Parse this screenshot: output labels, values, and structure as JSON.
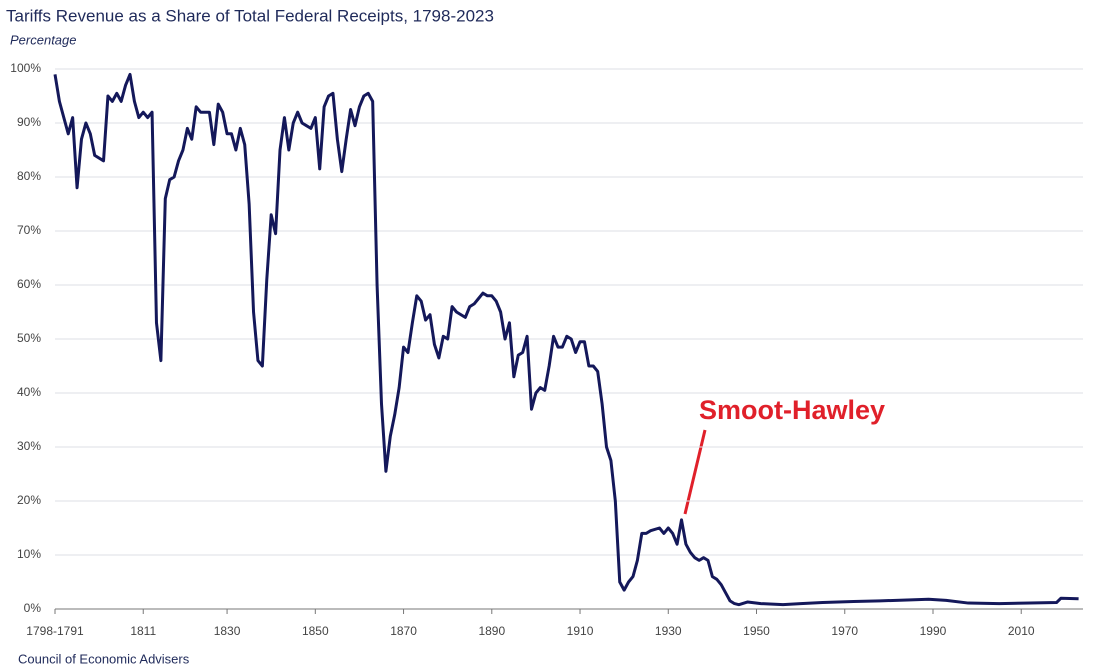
{
  "chart_data": {
    "type": "line",
    "title": "Tariffs Revenue as a Share of Total Federal Receipts, 1798-2023",
    "subtitle": "Percentage",
    "source": "Council of Economic Advisers",
    "annotation": "Smoot-Hawley",
    "color": "#14185a",
    "grid": true,
    "x": [
      1791,
      1792,
      1793,
      1794,
      1795,
      1796,
      1797,
      1798,
      1799,
      1800,
      1802,
      1803,
      1804,
      1805,
      1806,
      1807,
      1808,
      1809,
      1810,
      1811,
      1812,
      1813,
      1814,
      1815,
      1816,
      1817,
      1818,
      1819,
      1820,
      1821,
      1822,
      1823,
      1824,
      1826,
      1827,
      1828,
      1829,
      1830,
      1831,
      1832,
      1833,
      1834,
      1835,
      1836,
      1837,
      1838,
      1839,
      1840,
      1841,
      1842,
      1843,
      1844,
      1845,
      1846,
      1847,
      1848,
      1849,
      1850,
      1851,
      1852,
      1853,
      1854,
      1855,
      1856,
      1857,
      1858,
      1859,
      1860,
      1861,
      1862,
      1863,
      1864,
      1865,
      1866,
      1867,
      1868,
      1869,
      1870,
      1871,
      1872,
      1873,
      1874,
      1875,
      1876,
      1877,
      1878,
      1879,
      1880,
      1881,
      1882,
      1884,
      1885,
      1886,
      1887,
      1888,
      1889,
      1890,
      1891,
      1892,
      1893,
      1894,
      1895,
      1896,
      1897,
      1898,
      1899,
      1900,
      1901,
      1902,
      1903,
      1904,
      1905,
      1906,
      1907,
      1908,
      1909,
      1910,
      1911,
      1912,
      1913,
      1914,
      1915,
      1916,
      1917,
      1918,
      1919,
      1920,
      1921,
      1922,
      1923,
      1924,
      1925,
      1926,
      1928,
      1929,
      1930,
      1931,
      1932,
      1933,
      1934,
      1935,
      1936,
      1937,
      1938,
      1939,
      1940,
      1941,
      1942,
      1943,
      1944,
      1945,
      1946,
      1948,
      1951,
      1956,
      1960,
      1965,
      1972,
      1978,
      1985,
      1989,
      1993,
      1998,
      2005,
      2012,
      2018,
      2019,
      2023
    ],
    "values": [
      99,
      94,
      91,
      88,
      91,
      78,
      87,
      90,
      88,
      84,
      83,
      95,
      94,
      95.5,
      94,
      97,
      99,
      94,
      91,
      92,
      91,
      92,
      53,
      46,
      76,
      79.5,
      80,
      83,
      85,
      89,
      87,
      93,
      92,
      92,
      86,
      93.5,
      92,
      88,
      88,
      85,
      89,
      86,
      75,
      55,
      46,
      45,
      61,
      73,
      69.5,
      85,
      91,
      85,
      90,
      92,
      90,
      89.5,
      89,
      91,
      81.5,
      93,
      95,
      95.5,
      87,
      81,
      87,
      92.5,
      89.5,
      93,
      95,
      95.5,
      94,
      60,
      38,
      25.5,
      32,
      36,
      41,
      48.5,
      47.5,
      53,
      58,
      57,
      53.5,
      54.5,
      49,
      46.5,
      50.5,
      50,
      56,
      55,
      54,
      56,
      56.5,
      57.5,
      58.5,
      58,
      58,
      57,
      55,
      50,
      53,
      43,
      47,
      47.5,
      50.5,
      37,
      40,
      41,
      40.5,
      45,
      50.5,
      48.5,
      48.5,
      50.5,
      50,
      47.5,
      49.5,
      49.5,
      45,
      45,
      44,
      38,
      30,
      27.5,
      20,
      5,
      3.5,
      5,
      6,
      9,
      14,
      14,
      14.5,
      15,
      14,
      15,
      14,
      12,
      16.5,
      12,
      10.5,
      9.5,
      9,
      9.5,
      9,
      6,
      5.5,
      4.5,
      3,
      1.5,
      1,
      0.8,
      1.3,
      1,
      0.8,
      1,
      1.2,
      1.4,
      1.5,
      1.7,
      1.8,
      1.6,
      1.1,
      1.0,
      1.1,
      1.2,
      2.0,
      1.9
    ],
    "xlim": [
      1791,
      2024
    ],
    "xticks": [
      {
        "value": 1791,
        "label": "1798-1791"
      },
      1811,
      1830,
      1850,
      1870,
      1890,
      1910,
      1930,
      1950,
      1970,
      1990,
      2010
    ],
    "ylim": [
      0,
      100
    ],
    "yticks": [
      {
        "value": 0,
        "label": "0%"
      },
      {
        "value": 10,
        "label": "10%"
      },
      {
        "value": 20,
        "label": "20%"
      },
      {
        "value": 30,
        "label": "30%"
      },
      {
        "value": 40,
        "label": "40%"
      },
      {
        "value": 50,
        "label": "50%"
      },
      {
        "value": 60,
        "label": "60%"
      },
      {
        "value": 70,
        "label": "70%"
      },
      {
        "value": 80,
        "label": "80%"
      },
      {
        "value": 90,
        "label": "90%"
      },
      {
        "value": 100,
        "label": "100%"
      }
    ]
  }
}
